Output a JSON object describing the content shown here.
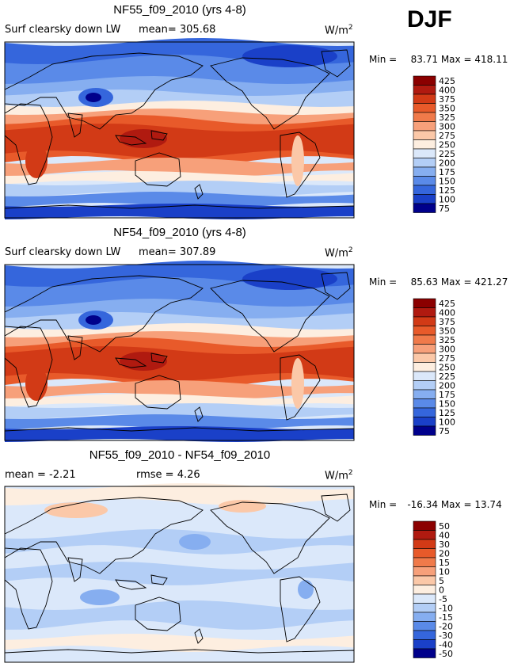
{
  "season": "DJF",
  "panels": [
    {
      "title": "NF55_f09_2010 (yrs 4-8)",
      "left_label": "Surf clearsky down LW",
      "stat1": "mean= 305.68",
      "stat2": "",
      "units": "W/m",
      "units_exp": "2",
      "min_label": "Min =",
      "min_value": "83.71",
      "max_label": "Max =",
      "max_value": "418.11"
    },
    {
      "title": "NF54_f09_2010 (yrs 4-8)",
      "left_label": "Surf clearsky down LW",
      "stat1": "mean= 307.89",
      "stat2": "",
      "units": "W/m",
      "units_exp": "2",
      "min_label": "Min =",
      "min_value": "85.63",
      "max_label": "Max =",
      "max_value": "421.27"
    },
    {
      "title": "NF55_f09_2010 - NF54_f09_2010",
      "left_label": "mean =   -2.21",
      "stat1": "",
      "stat2": "rmse =    4.26",
      "units": "W/m",
      "units_exp": "2",
      "min_label": "Min =",
      "min_value": "-16.34",
      "max_label": "Max =",
      "max_value": "13.74"
    }
  ],
  "chart_data": [
    {
      "type": "heatmap",
      "title": "NF55_f09_2010 (yrs 4-8)",
      "variable": "Surf clearsky down LW",
      "units": "W/m2",
      "mean": 305.68,
      "min": 83.71,
      "max": 418.11,
      "colorbar_levels": [
        "425",
        "400",
        "375",
        "350",
        "325",
        "300",
        "275",
        "250",
        "225",
        "200",
        "175",
        "150",
        "125",
        "100",
        "75"
      ],
      "colorbar_colors": [
        "#8b0000",
        "#b01a10",
        "#d23a16",
        "#e85a2a",
        "#f07a4a",
        "#f7a07a",
        "#fbc8a8",
        "#fdeee0",
        "#dbe8fa",
        "#b3cef6",
        "#86aef0",
        "#5a8ae8",
        "#3566dc",
        "#1a40c8",
        "#00008b"
      ]
    },
    {
      "type": "heatmap",
      "title": "NF54_f09_2010 (yrs 4-8)",
      "variable": "Surf clearsky down LW",
      "units": "W/m2",
      "mean": 307.89,
      "min": 85.63,
      "max": 421.27,
      "colorbar_levels": [
        "425",
        "400",
        "375",
        "350",
        "325",
        "300",
        "275",
        "250",
        "225",
        "200",
        "175",
        "150",
        "125",
        "100",
        "75"
      ],
      "colorbar_colors": [
        "#8b0000",
        "#b01a10",
        "#d23a16",
        "#e85a2a",
        "#f07a4a",
        "#f7a07a",
        "#fbc8a8",
        "#fdeee0",
        "#dbe8fa",
        "#b3cef6",
        "#86aef0",
        "#5a8ae8",
        "#3566dc",
        "#1a40c8",
        "#00008b"
      ]
    },
    {
      "type": "heatmap",
      "title": "NF55_f09_2010 - NF54_f09_2010",
      "units": "W/m2",
      "mean": -2.21,
      "rmse": 4.26,
      "min": -16.34,
      "max": 13.74,
      "colorbar_levels": [
        "50",
        "40",
        "30",
        "20",
        "15",
        "10",
        "5",
        "0",
        "-5",
        "-10",
        "-15",
        "-20",
        "-30",
        "-40",
        "-50"
      ],
      "colorbar_colors": [
        "#8b0000",
        "#b01a10",
        "#d23a16",
        "#e85a2a",
        "#f07a4a",
        "#f7a07a",
        "#fbc8a8",
        "#fdeee0",
        "#dbe8fa",
        "#b3cef6",
        "#86aef0",
        "#5a8ae8",
        "#3566dc",
        "#1a40c8",
        "#00008b"
      ]
    }
  ]
}
